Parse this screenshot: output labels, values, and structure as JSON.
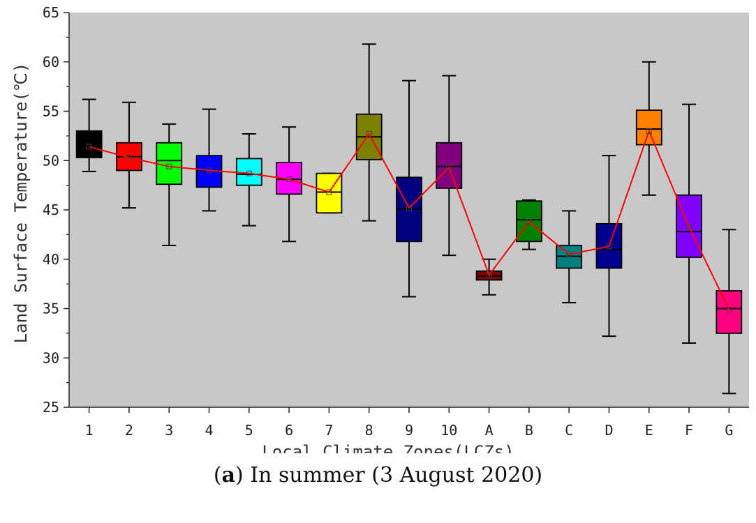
{
  "chart_data": {
    "type": "box",
    "title": "",
    "xlabel": "Local Climate Zones(LCZs)",
    "ylabel": "Land Surface Temperature(℃)",
    "ylim": [
      25,
      65
    ],
    "yticks": [
      25,
      30,
      35,
      40,
      45,
      50,
      55,
      60,
      65
    ],
    "categories": [
      "1",
      "2",
      "3",
      "4",
      "5",
      "6",
      "7",
      "8",
      "9",
      "10",
      "A",
      "B",
      "C",
      "D",
      "E",
      "F",
      "G"
    ],
    "colors": [
      "#000000",
      "#ff0000",
      "#00ff00",
      "#0000ff",
      "#00ffff",
      "#ff00ff",
      "#ffff00",
      "#808000",
      "#000080",
      "#800080",
      "#800000",
      "#008000",
      "#008080",
      "#000090",
      "#ff8000",
      "#8000ff",
      "#ff0080"
    ],
    "boxes": [
      {
        "min": 48.9,
        "q1": 50.3,
        "median": 51.4,
        "mean": 51.4,
        "q3": 53.0,
        "max": 56.2
      },
      {
        "min": 45.2,
        "q1": 49.0,
        "median": 50.4,
        "mean": 50.3,
        "q3": 51.8,
        "max": 55.9
      },
      {
        "min": 41.4,
        "q1": 47.6,
        "median": 50.0,
        "mean": 49.4,
        "q3": 51.8,
        "max": 53.7
      },
      {
        "min": 44.9,
        "q1": 47.3,
        "median": 49.0,
        "mean": 49.0,
        "q3": 50.5,
        "max": 55.2
      },
      {
        "min": 43.4,
        "q1": 47.5,
        "median": 48.6,
        "mean": 48.7,
        "q3": 50.2,
        "max": 52.7
      },
      {
        "min": 41.8,
        "q1": 46.6,
        "median": 48.1,
        "mean": 48.1,
        "q3": 49.8,
        "max": 53.4
      },
      {
        "min": 44.7,
        "q1": 44.7,
        "median": 46.8,
        "mean": 46.8,
        "q3": 48.7,
        "max": 48.7
      },
      {
        "min": 43.9,
        "q1": 50.1,
        "median": 52.4,
        "mean": 52.7,
        "q3": 54.7,
        "max": 61.8
      },
      {
        "min": 36.2,
        "q1": 41.8,
        "median": 45.1,
        "mean": 45.2,
        "q3": 48.3,
        "max": 58.1
      },
      {
        "min": 40.4,
        "q1": 47.2,
        "median": 49.4,
        "mean": 49.3,
        "q3": 51.8,
        "max": 58.6
      },
      {
        "min": 36.4,
        "q1": 37.9,
        "median": 38.3,
        "mean": 38.4,
        "q3": 38.8,
        "max": 40.0
      },
      {
        "min": 41.0,
        "q1": 41.8,
        "median": 44.0,
        "mean": 43.8,
        "q3": 45.9,
        "max": 46.0
      },
      {
        "min": 35.6,
        "q1": 39.1,
        "median": 40.3,
        "mean": 40.5,
        "q3": 41.4,
        "max": 44.9
      },
      {
        "min": 32.2,
        "q1": 39.1,
        "median": 41.0,
        "mean": 41.3,
        "q3": 43.6,
        "max": 50.5
      },
      {
        "min": 46.5,
        "q1": 51.6,
        "median": 53.2,
        "mean": 53.0,
        "q3": 55.1,
        "max": 60.0
      },
      {
        "min": 31.5,
        "q1": 40.2,
        "median": 42.8,
        "mean": 43.3,
        "q3": 46.5,
        "max": 55.7
      },
      {
        "min": 26.4,
        "q1": 32.5,
        "median": 35.0,
        "mean": 34.9,
        "q3": 36.8,
        "max": 43.0
      }
    ],
    "mean_line_color": "#ff0000",
    "plot_background": "#c8c8c8"
  },
  "caption": {
    "label": "a",
    "text": "In summer (3 August 2020)"
  }
}
